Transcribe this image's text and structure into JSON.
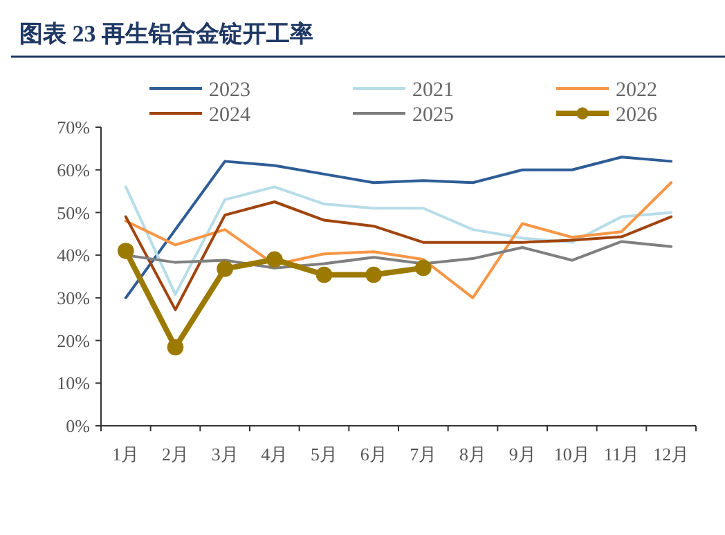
{
  "chart_data": {
    "type": "line",
    "title": "图表 23 再生铝合金锭开工率",
    "categories": [
      "1月",
      "2月",
      "3月",
      "4月",
      "5月",
      "6月",
      "7月",
      "8月",
      "9月",
      "10月",
      "11月",
      "12月"
    ],
    "ylim": [
      0,
      70
    ],
    "yticks": [
      {
        "value": 0,
        "label": "0%"
      },
      {
        "value": 10,
        "label": "10%"
      },
      {
        "value": 20,
        "label": "20%"
      },
      {
        "value": 30,
        "label": "30%"
      },
      {
        "value": 40,
        "label": "40%"
      },
      {
        "value": 50,
        "label": "50%"
      },
      {
        "value": 60,
        "label": "60%"
      },
      {
        "value": 70,
        "label": "70%"
      }
    ],
    "grid": false,
    "legend": "top",
    "series": [
      {
        "name": "2023",
        "color": "#2e5d96",
        "values": [
          30,
          46,
          62,
          61,
          59,
          57,
          57.5,
          57,
          60,
          60,
          63,
          62
        ]
      },
      {
        "name": "2021",
        "color": "#b7dde8",
        "values": [
          56,
          30.8,
          53,
          56,
          52,
          51,
          51,
          46,
          44,
          43,
          49,
          50
        ]
      },
      {
        "name": "2022",
        "color": "#f79646",
        "values": [
          48,
          42.4,
          46,
          37.8,
          40.3,
          40.8,
          39,
          30,
          47.4,
          44.2,
          45.5,
          57
        ]
      },
      {
        "name": "2024",
        "color": "#a0440e",
        "values": [
          49,
          27.2,
          49.4,
          52.5,
          48.2,
          46.8,
          43,
          43,
          43,
          43.5,
          44.3,
          49
        ]
      },
      {
        "name": "2025",
        "color": "#7f7f7f",
        "values": [
          40,
          38.3,
          38.8,
          37,
          38,
          39.5,
          38,
          39.2,
          41.8,
          38.8,
          43.2,
          42
        ]
      },
      {
        "name": "2026",
        "color": "#9c7a00",
        "marker": "circle",
        "values": [
          41,
          18.4,
          36.8,
          39,
          35.4,
          35.4,
          37,
          null,
          null,
          null,
          null,
          null
        ]
      }
    ]
  }
}
